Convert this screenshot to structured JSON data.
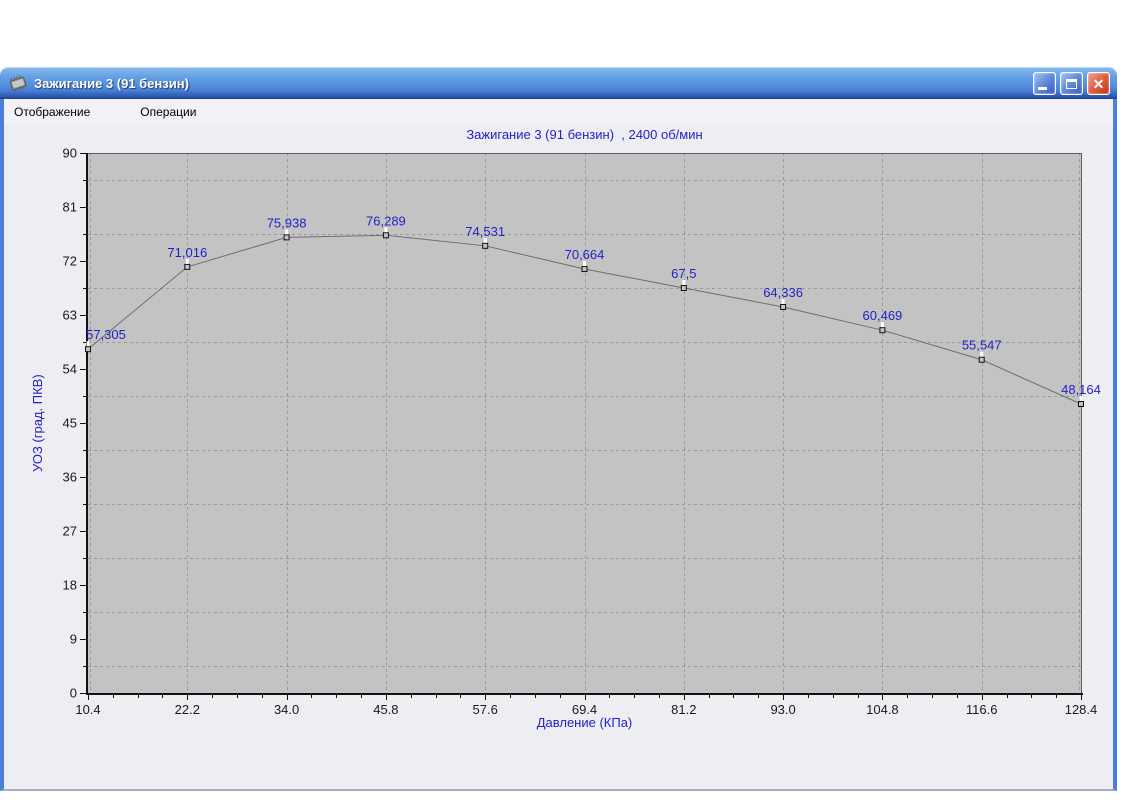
{
  "window": {
    "title": "Зажигание 3 (91 бензин)",
    "icon": "chip-icon",
    "controls": [
      {
        "name": "minimize",
        "icon": "minimize-icon"
      },
      {
        "name": "maximize",
        "icon": "maximize-icon"
      },
      {
        "name": "close",
        "icon": "close-icon"
      }
    ],
    "menu": [
      {
        "label": "Отображение"
      },
      {
        "label": "Операции"
      }
    ]
  },
  "chart_data": {
    "type": "line",
    "title": "Зажигание 3 (91 бензин)  , 2400 об/мин",
    "xlabel": "Давление (КПа)",
    "ylabel": "УОЗ (град. ПКВ)",
    "x": [
      10.4,
      22.2,
      34.0,
      45.8,
      57.6,
      69.4,
      81.2,
      93.0,
      104.8,
      116.6,
      128.4
    ],
    "y": [
      57.305,
      71.016,
      75.938,
      76.289,
      74.531,
      70.664,
      67.5,
      64.336,
      60.469,
      55.547,
      48.164
    ],
    "point_labels": [
      "57,305",
      "71,016",
      "75,938",
      "76,289",
      "74,531",
      "70,664",
      "67,5",
      "64,336",
      "60,469",
      "55,547",
      "48,164"
    ],
    "x_tick_labels": [
      "10.4",
      "22.2",
      "34.0",
      "45.8",
      "57.6",
      "69.4",
      "81.2",
      "93.0",
      "104.8",
      "116.6",
      "128.4"
    ],
    "y_ticks": [
      0,
      9,
      18,
      27,
      36,
      45,
      54,
      63,
      72,
      81,
      90
    ],
    "xlim": [
      10.4,
      128.4
    ],
    "ylim": [
      0,
      90
    ],
    "grid": "dashed",
    "gridline_y_values": [
      4.5,
      13.5,
      22.5,
      31.5,
      40.5,
      49.5,
      58.5,
      67.5,
      76.5,
      85.5
    ],
    "legend": "none",
    "colors": {
      "plot_bg": "#c3c3c3",
      "gridline": "#9a9a9a",
      "line": "#6e6e6e",
      "marker_stroke": "#111111",
      "marker_notch": "#ffffff",
      "label_text": "#2222c8",
      "tick_text": "#1a1a1a",
      "axis": "#111111",
      "frame": "#606060"
    }
  }
}
